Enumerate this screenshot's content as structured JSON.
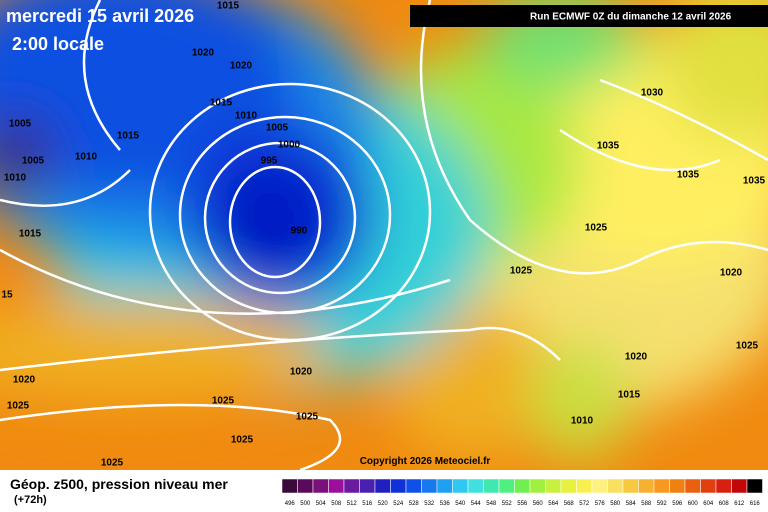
{
  "header": {
    "date": "mercredi 15 avril 2026",
    "time": "2:00 locale",
    "run": "Run ECMWF 0Z du dimanche 12 avril 2026"
  },
  "copyright": "Copyright 2026 Meteociel.fr",
  "legend": {
    "title": "Géop. z500, pression niveau mer",
    "lead": "(+72h)",
    "scale": [
      496,
      500,
      504,
      508,
      512,
      516,
      520,
      524,
      528,
      532,
      536,
      540,
      544,
      548,
      552,
      556,
      560,
      564,
      568,
      572,
      576,
      580,
      584,
      588,
      592,
      596,
      600,
      604,
      608,
      612,
      616
    ]
  },
  "isobar_labels": [
    "1015",
    "1020",
    "1020",
    "1015",
    "1010",
    "1005",
    "1015",
    "1005",
    "1000",
    "1005",
    "1010",
    "995",
    "1010",
    "1015",
    "990",
    "15",
    "1020",
    "1020",
    "1025",
    "1025",
    "1025",
    "1025",
    "1025",
    "1030",
    "1035",
    "1035",
    "1035",
    "1025",
    "1025",
    "1020",
    "1025",
    "1020",
    "1015",
    "1010"
  ]
}
